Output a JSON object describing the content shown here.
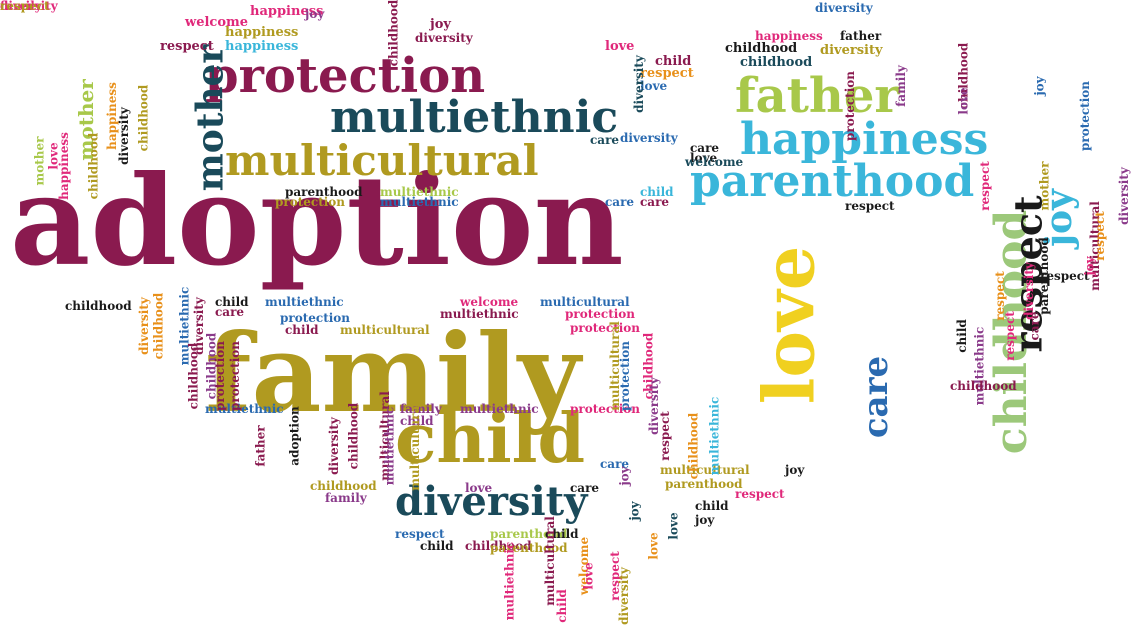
{
  "palette": {
    "maroon": "#8a1a4f",
    "olive": "#b09a20",
    "teal": "#1a4a5a",
    "lime": "#a8c84a",
    "cyan": "#3ab6da",
    "yellow": "#f0d020",
    "pink": "#e0287a",
    "purple": "#8a3a8a",
    "blue": "#2a6ab0",
    "orange": "#e8901a",
    "black": "#1a1a1a",
    "sage": "#9cc87a"
  },
  "words": [
    {
      "text": "adoption",
      "color": "maroon"
    },
    {
      "text": "family",
      "color": "olive"
    },
    {
      "text": "protection",
      "color": "maroon"
    },
    {
      "text": "multiethnic",
      "color": "teal"
    },
    {
      "text": "multicultural",
      "color": "olive"
    },
    {
      "text": "father",
      "color": "lime"
    },
    {
      "text": "happiness",
      "color": "cyan"
    },
    {
      "text": "parenthood",
      "color": "cyan"
    },
    {
      "text": "mother",
      "color": "teal"
    },
    {
      "text": "child",
      "color": "olive"
    },
    {
      "text": "diversity",
      "color": "teal"
    },
    {
      "text": "love",
      "color": "yellow"
    },
    {
      "text": "childhood",
      "color": "sage"
    },
    {
      "text": "respect",
      "color": "black"
    },
    {
      "text": "joy",
      "color": "cyan"
    },
    {
      "text": "care",
      "color": "blue"
    },
    {
      "text": "happiness",
      "color": "pink"
    },
    {
      "text": "joy",
      "color": "purple"
    },
    {
      "text": "welcome",
      "color": "pink"
    },
    {
      "text": "happiness",
      "color": "olive"
    },
    {
      "text": "respect",
      "color": "maroon"
    },
    {
      "text": "happiness",
      "color": "cyan"
    },
    {
      "text": "joy",
      "color": "maroon"
    },
    {
      "text": "diversity",
      "color": "maroon"
    },
    {
      "text": "childhood",
      "color": "maroon"
    },
    {
      "text": "childhood",
      "color": "black"
    },
    {
      "text": "diversity",
      "color": "olive"
    },
    {
      "text": "childhood",
      "color": "teal"
    },
    {
      "text": "diversity",
      "color": "blue"
    },
    {
      "text": "love",
      "color": "pink"
    },
    {
      "text": "respect",
      "color": "orange"
    },
    {
      "text": "happiness",
      "color": "pink"
    },
    {
      "text": "father",
      "color": "black"
    },
    {
      "text": "child",
      "color": "maroon"
    },
    {
      "text": "love",
      "color": "blue"
    },
    {
      "text": "childhood",
      "color": "maroon"
    },
    {
      "text": "diversity",
      "color": "teal"
    },
    {
      "text": "diversity",
      "color": "blue"
    },
    {
      "text": "care",
      "color": "teal"
    },
    {
      "text": "care",
      "color": "black"
    },
    {
      "text": "love",
      "color": "black"
    },
    {
      "text": "welcome",
      "color": "teal"
    },
    {
      "text": "parenthood",
      "color": "black"
    },
    {
      "text": "multiethnic",
      "color": "lime"
    },
    {
      "text": "child",
      "color": "cyan"
    },
    {
      "text": "protection",
      "color": "olive"
    },
    {
      "text": "multiethnic",
      "color": "blue"
    },
    {
      "text": "care",
      "color": "blue"
    },
    {
      "text": "care",
      "color": "maroon"
    },
    {
      "text": "respect",
      "color": "black"
    },
    {
      "text": "childhood",
      "color": "black"
    },
    {
      "text": "child",
      "color": "black"
    },
    {
      "text": "multiethnic",
      "color": "blue"
    },
    {
      "text": "care",
      "color": "maroon"
    },
    {
      "text": "protection",
      "color": "blue"
    },
    {
      "text": "child",
      "color": "maroon"
    },
    {
      "text": "multicultural",
      "color": "olive"
    },
    {
      "text": "welcome",
      "color": "pink"
    },
    {
      "text": "multicultural",
      "color": "blue"
    },
    {
      "text": "multiethnic",
      "color": "maroon"
    },
    {
      "text": "protection",
      "color": "pink"
    },
    {
      "text": "protection",
      "color": "pink"
    },
    {
      "text": "multiethnic",
      "color": "blue"
    },
    {
      "text": "family",
      "color": "purple"
    },
    {
      "text": "multiethnic",
      "color": "purple"
    },
    {
      "text": "protection",
      "color": "pink"
    },
    {
      "text": "child",
      "color": "purple"
    },
    {
      "text": "care",
      "color": "blue"
    },
    {
      "text": "multicultural",
      "color": "olive"
    },
    {
      "text": "joy",
      "color": "black"
    },
    {
      "text": "care",
      "color": "black"
    },
    {
      "text": "love",
      "color": "purple"
    },
    {
      "text": "childhood",
      "color": "olive"
    },
    {
      "text": "parenthood",
      "color": "olive"
    },
    {
      "text": "family",
      "color": "purple"
    },
    {
      "text": "respect",
      "color": "pink"
    },
    {
      "text": "respect",
      "color": "blue"
    },
    {
      "text": "parenthood",
      "color": "lime"
    },
    {
      "text": "child",
      "color": "black"
    },
    {
      "text": "child",
      "color": "black"
    },
    {
      "text": "childhood",
      "color": "maroon"
    },
    {
      "text": "parenthood",
      "color": "olive"
    },
    {
      "text": "joy",
      "color": "black"
    },
    {
      "text": "child",
      "color": "black"
    },
    {
      "text": "mother",
      "color": "lime"
    },
    {
      "text": "love",
      "color": "purple"
    },
    {
      "text": "family",
      "color": "purple"
    },
    {
      "text": "protection",
      "color": "maroon"
    },
    {
      "text": "multiethnic",
      "color": "purple"
    },
    {
      "text": "childhood",
      "color": "maroon"
    },
    {
      "text": "respect",
      "color": "pink"
    },
    {
      "text": "child",
      "color": "black"
    },
    {
      "text": "respect",
      "color": "orange"
    },
    {
      "text": "diversity",
      "color": "pink"
    },
    {
      "text": "respect",
      "color": "black"
    },
    {
      "text": "parenthood",
      "color": "black"
    },
    {
      "text": "multicultural",
      "color": "maroon"
    },
    {
      "text": "care",
      "color": "maroon"
    },
    {
      "text": "protection",
      "color": "blue"
    },
    {
      "text": "joy",
      "color": "blue"
    },
    {
      "text": "father",
      "color": "maroon"
    },
    {
      "text": "adoption",
      "color": "black"
    },
    {
      "text": "multicultural",
      "color": "maroon"
    },
    {
      "text": "multiethnic",
      "color": "purple"
    },
    {
      "text": "multicultural",
      "color": "olive"
    },
    {
      "text": "diversity",
      "color": "maroon"
    },
    {
      "text": "childhood",
      "color": "maroon"
    },
    {
      "text": "respect",
      "color": "maroon"
    },
    {
      "text": "childhood",
      "color": "orange"
    },
    {
      "text": "multiethnic",
      "color": "cyan"
    },
    {
      "text": "multicultural",
      "color": "olive"
    },
    {
      "text": "protection",
      "color": "blue"
    },
    {
      "text": "childhood",
      "color": "pink"
    },
    {
      "text": "diversity",
      "color": "purple"
    },
    {
      "text": "multiethnic",
      "color": "pink"
    },
    {
      "text": "multicultural",
      "color": "maroon"
    },
    {
      "text": "child",
      "color": "pink"
    },
    {
      "text": "welcome",
      "color": "orange"
    },
    {
      "text": "love",
      "color": "pink"
    },
    {
      "text": "respect",
      "color": "pink"
    },
    {
      "text": "diversity",
      "color": "olive"
    },
    {
      "text": "happiness",
      "color": "orange"
    },
    {
      "text": "diversity",
      "color": "black"
    },
    {
      "text": "childhood",
      "color": "olive"
    },
    {
      "text": "mother",
      "color": "lime"
    },
    {
      "text": "happiness",
      "color": "pink"
    },
    {
      "text": "love",
      "color": "pink"
    },
    {
      "text": "childhood",
      "color": "olive"
    },
    {
      "text": "diversity",
      "color": "orange"
    },
    {
      "text": "childhood",
      "color": "orange"
    },
    {
      "text": "multiethnic",
      "color": "blue"
    },
    {
      "text": "diversity",
      "color": "maroon"
    },
    {
      "text": "childhood",
      "color": "purple"
    },
    {
      "text": "protection",
      "color": "maroon"
    },
    {
      "text": "protection",
      "color": "maroon"
    },
    {
      "text": "childhood",
      "color": "maroon"
    },
    {
      "text": "diversity",
      "color": "purple"
    },
    {
      "text": "respect",
      "color": "orange"
    },
    {
      "text": "respect",
      "color": "pink"
    },
    {
      "text": "mother",
      "color": "olive"
    },
    {
      "text": "joy",
      "color": "pink"
    },
    {
      "text": "love",
      "color": "orange"
    },
    {
      "text": "love",
      "color": "teal"
    },
    {
      "text": "joy",
      "color": "teal"
    },
    {
      "text": "joy",
      "color": "purple"
    },
    {
      "text": "family",
      "color": "pink"
    },
    {
      "text": "diversity",
      "color": "pink"
    },
    {
      "text": "respect",
      "color": "olive"
    }
  ]
}
